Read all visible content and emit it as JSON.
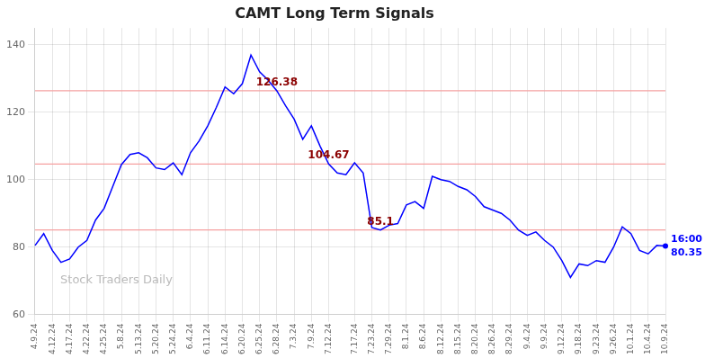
{
  "chart_data": {
    "type": "line",
    "title": "CAMT Long Term Signals",
    "categories": [
      "4.9.24",
      null,
      "4.12.24",
      null,
      "4.17.24",
      null,
      "4.22.24",
      null,
      "4.25.24",
      null,
      "5.8.24",
      null,
      "5.13.24",
      null,
      "5.20.24",
      null,
      "5.24.24",
      null,
      "6.4.24",
      null,
      "6.11.24",
      null,
      "6.14.24",
      null,
      "6.20.24",
      null,
      "6.25.24",
      null,
      "6.28.24",
      null,
      "7.3.24",
      null,
      "7.9.24",
      null,
      "7.12.24",
      null,
      null,
      "7.17.24",
      null,
      "7.23.24",
      null,
      "7.29.24",
      null,
      "8.1.24",
      null,
      "8.6.24",
      null,
      "8.12.24",
      null,
      "8.15.24",
      null,
      "8.20.24",
      null,
      "8.26.24",
      null,
      "8.29.24",
      null,
      "9.4.24",
      null,
      "9.9.24",
      null,
      "9.12.24",
      null,
      "9.18.24",
      null,
      "9.23.24",
      null,
      "9.26.24",
      null,
      "10.1.24",
      null,
      "10.4.24",
      null,
      "10.9.24"
    ],
    "values": [
      80.5,
      84.0,
      79.0,
      75.5,
      76.5,
      80.0,
      82.0,
      88.0,
      91.5,
      98.0,
      104.5,
      107.5,
      108.0,
      106.5,
      103.5,
      103.0,
      105.0,
      101.5,
      108.0,
      111.5,
      116.0,
      121.5,
      127.5,
      125.5,
      128.5,
      137.0,
      132.0,
      129.5,
      126.38,
      122.0,
      118.0,
      112.0,
      116.0,
      110.0,
      104.67,
      102.0,
      101.5,
      105.0,
      102.0,
      85.8,
      85.1,
      86.5,
      87.0,
      92.5,
      93.5,
      91.5,
      101.0,
      100.0,
      99.5,
      98.0,
      97.0,
      95.0,
      92.0,
      91.0,
      90.0,
      88.0,
      85.0,
      83.5,
      84.5,
      82.0,
      80.0,
      76.0,
      71.0,
      75.0,
      74.5,
      76.0,
      75.5,
      80.0,
      86.0,
      84.0,
      79.0,
      78.0,
      80.5,
      80.35
    ],
    "color": "blue",
    "hlines": {
      "values": [
        85.1,
        104.67,
        126.38
      ],
      "color": "#f5a0a0",
      "annotation_color": "#8b0000"
    },
    "end_label": {
      "text": "16:00",
      "value": 80.35,
      "color": "blue"
    },
    "watermark": {
      "text": "Stock Traders Daily",
      "color": "#bbbbbb"
    },
    "ylim": [
      60,
      145
    ],
    "yticks": [
      60,
      80,
      100,
      120,
      140
    ],
    "grid": true
  }
}
